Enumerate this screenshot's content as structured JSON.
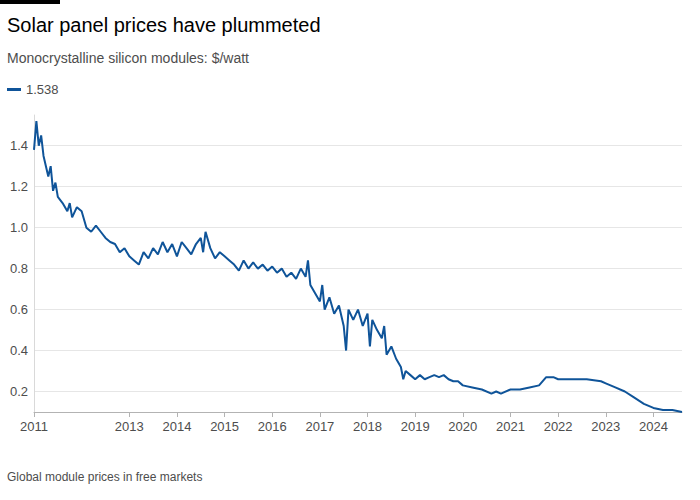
{
  "chart_data": {
    "type": "line",
    "title": "Solar panel prices have plummeted",
    "subtitle": "Monocrystalline silicon modules: $/watt",
    "footnote": "Global module prices in free markets",
    "legend": "top-left",
    "grid": true,
    "x": [
      2011.0,
      2011.05,
      2011.1,
      2011.15,
      2011.2,
      2011.25,
      2011.3,
      2011.35,
      2011.4,
      2011.45,
      2011.5,
      2011.6,
      2011.7,
      2011.75,
      2011.8,
      2011.9,
      2012.0,
      2012.1,
      2012.2,
      2012.3,
      2012.4,
      2012.5,
      2012.6,
      2012.7,
      2012.8,
      2012.9,
      2013.0,
      2013.1,
      2013.2,
      2013.3,
      2013.4,
      2013.5,
      2013.6,
      2013.7,
      2013.8,
      2013.9,
      2014.0,
      2014.1,
      2014.2,
      2014.3,
      2014.4,
      2014.5,
      2014.55,
      2014.6,
      2014.7,
      2014.8,
      2014.9,
      2015.0,
      2015.1,
      2015.2,
      2015.3,
      2015.4,
      2015.5,
      2015.6,
      2015.7,
      2015.8,
      2015.9,
      2016.0,
      2016.1,
      2016.2,
      2016.3,
      2016.4,
      2016.5,
      2016.6,
      2016.7,
      2016.75,
      2016.8,
      2016.9,
      2017.0,
      2017.05,
      2017.1,
      2017.2,
      2017.3,
      2017.4,
      2017.5,
      2017.55,
      2017.6,
      2017.7,
      2017.8,
      2017.9,
      2018.0,
      2018.05,
      2018.1,
      2018.2,
      2018.3,
      2018.35,
      2018.4,
      2018.5,
      2018.6,
      2018.7,
      2018.75,
      2018.8,
      2018.9,
      2019.0,
      2019.1,
      2019.2,
      2019.3,
      2019.4,
      2019.5,
      2019.6,
      2019.7,
      2019.8,
      2019.9,
      2020.0,
      2020.2,
      2020.4,
      2020.6,
      2020.7,
      2020.8,
      2021.0,
      2021.2,
      2021.4,
      2021.6,
      2021.75,
      2021.9,
      2022.0,
      2022.3,
      2022.6,
      2022.9,
      2023.0,
      2023.2,
      2023.4,
      2023.6,
      2023.8,
      2024.0,
      2024.2,
      2024.4,
      2024.6
    ],
    "series": [
      {
        "name": "1.538",
        "color": "#0f5499",
        "values": [
          1.38,
          1.52,
          1.4,
          1.45,
          1.35,
          1.3,
          1.25,
          1.3,
          1.18,
          1.22,
          1.15,
          1.12,
          1.08,
          1.12,
          1.05,
          1.1,
          1.08,
          1.0,
          0.98,
          1.01,
          0.98,
          0.95,
          0.93,
          0.92,
          0.88,
          0.9,
          0.86,
          0.84,
          0.82,
          0.88,
          0.85,
          0.9,
          0.87,
          0.93,
          0.88,
          0.92,
          0.86,
          0.93,
          0.9,
          0.87,
          0.92,
          0.95,
          0.88,
          0.98,
          0.9,
          0.85,
          0.88,
          0.86,
          0.84,
          0.82,
          0.79,
          0.84,
          0.8,
          0.83,
          0.8,
          0.82,
          0.79,
          0.81,
          0.78,
          0.8,
          0.76,
          0.78,
          0.75,
          0.8,
          0.76,
          0.84,
          0.72,
          0.68,
          0.64,
          0.72,
          0.6,
          0.66,
          0.58,
          0.62,
          0.52,
          0.4,
          0.6,
          0.55,
          0.6,
          0.52,
          0.58,
          0.42,
          0.55,
          0.5,
          0.46,
          0.52,
          0.38,
          0.42,
          0.36,
          0.32,
          0.26,
          0.3,
          0.28,
          0.26,
          0.28,
          0.26,
          0.27,
          0.28,
          0.27,
          0.28,
          0.26,
          0.25,
          0.25,
          0.23,
          0.22,
          0.21,
          0.19,
          0.2,
          0.19,
          0.21,
          0.21,
          0.22,
          0.23,
          0.27,
          0.27,
          0.26,
          0.26,
          0.26,
          0.25,
          0.24,
          0.22,
          0.2,
          0.17,
          0.14,
          0.12,
          0.11,
          0.11,
          0.1
        ]
      }
    ],
    "xlim": [
      2011,
      2024.6
    ],
    "xticks": [
      2011,
      2013,
      2014,
      2015,
      2016,
      2017,
      2018,
      2019,
      2020,
      2021,
      2022,
      2023,
      2024
    ],
    "ylim": [
      0.1,
      1.55
    ],
    "yticks": [
      0.2,
      0.4,
      0.6,
      0.8,
      {
        "value": 1,
        "label": "1.0"
      },
      1.2,
      1.4
    ]
  }
}
